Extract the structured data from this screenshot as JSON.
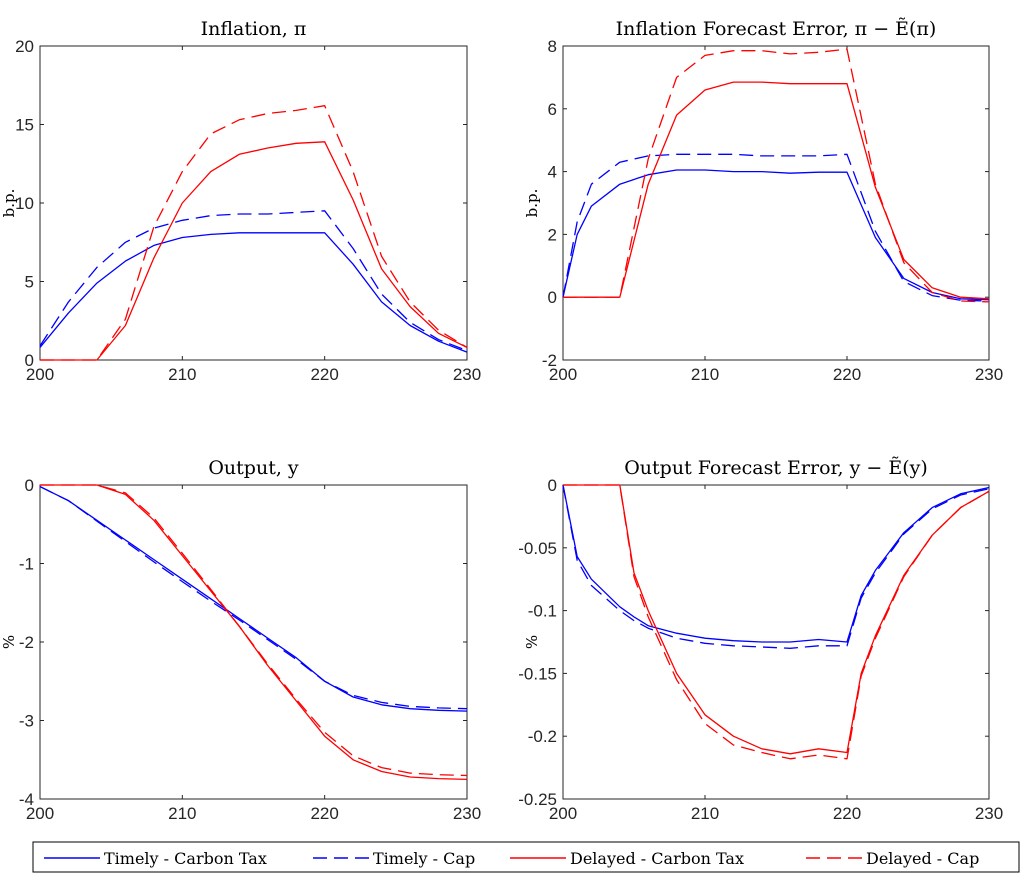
{
  "legend": [
    {
      "label": "Timely - Carbon Tax",
      "color": "#0000ff",
      "dash": "solid"
    },
    {
      "label": "Timely - Cap",
      "color": "#0000ff",
      "dash": "dashed"
    },
    {
      "label": "Delayed - Carbon Tax",
      "color": "#ff0000",
      "dash": "solid"
    },
    {
      "label": "Delayed - Cap",
      "color": "#ff0000",
      "dash": "dashed"
    }
  ],
  "chart_data": [
    {
      "id": "inflation",
      "type": "line",
      "title": "Inflation, π",
      "ylabel": "b.p.",
      "xlabel": "",
      "xlim": [
        200,
        230
      ],
      "ylim": [
        0,
        20
      ],
      "xticks": [
        200,
        210,
        220,
        230
      ],
      "yticks": [
        0,
        5,
        10,
        15,
        20
      ],
      "x": [
        200,
        202,
        204,
        206,
        208,
        210,
        212,
        214,
        216,
        218,
        220,
        222,
        224,
        226,
        228,
        230
      ],
      "series": [
        {
          "name": "Timely - Carbon Tax",
          "values": [
            0.8,
            3.0,
            4.9,
            6.3,
            7.3,
            7.8,
            8.0,
            8.1,
            8.1,
            8.1,
            8.1,
            6.1,
            3.7,
            2.2,
            1.2,
            0.5
          ]
        },
        {
          "name": "Timely - Cap",
          "values": [
            0.9,
            3.7,
            5.9,
            7.5,
            8.4,
            8.9,
            9.2,
            9.3,
            9.3,
            9.4,
            9.5,
            7.1,
            4.2,
            2.4,
            1.3,
            0.6
          ]
        },
        {
          "name": "Delayed - Carbon Tax",
          "values": [
            0,
            0,
            0,
            2.2,
            6.5,
            10.0,
            12.0,
            13.1,
            13.5,
            13.8,
            13.9,
            10.2,
            5.8,
            3.4,
            1.7,
            0.8
          ]
        },
        {
          "name": "Delayed - Cap",
          "values": [
            0,
            0,
            0,
            2.6,
            8.5,
            12.0,
            14.4,
            15.3,
            15.7,
            15.9,
            16.2,
            12.0,
            6.6,
            3.7,
            1.9,
            0.8
          ]
        }
      ]
    },
    {
      "id": "inflation-forecast-error",
      "type": "line",
      "title": "Inflation Forecast Error, π − Ẽ(π)",
      "ylabel": "b.p.",
      "xlabel": "",
      "xlim": [
        200,
        230
      ],
      "ylim": [
        -2,
        8
      ],
      "xticks": [
        200,
        210,
        220,
        230
      ],
      "yticks": [
        -2,
        0,
        2,
        4,
        6,
        8
      ],
      "x": [
        200,
        201,
        202,
        204,
        206,
        208,
        210,
        212,
        214,
        216,
        218,
        220,
        222,
        224,
        226,
        228,
        230
      ],
      "series": [
        {
          "name": "Timely - Carbon Tax",
          "values": [
            0,
            2.0,
            2.9,
            3.6,
            3.9,
            4.05,
            4.05,
            4.0,
            4.0,
            3.95,
            3.98,
            3.98,
            1.9,
            0.6,
            0.15,
            -0.05,
            -0.08
          ]
        },
        {
          "name": "Timely - Cap",
          "values": [
            0,
            2.4,
            3.6,
            4.3,
            4.5,
            4.55,
            4.55,
            4.55,
            4.5,
            4.5,
            4.5,
            4.55,
            2.1,
            0.5,
            0.05,
            -0.1,
            -0.12
          ]
        },
        {
          "name": "Delayed - Carbon Tax",
          "values": [
            0,
            0,
            0,
            0,
            3.6,
            5.8,
            6.6,
            6.85,
            6.85,
            6.8,
            6.8,
            6.8,
            3.5,
            1.2,
            0.3,
            0,
            -0.05
          ]
        },
        {
          "name": "Delayed - Cap",
          "values": [
            0,
            0,
            0,
            0,
            4.4,
            7.0,
            7.7,
            7.85,
            7.85,
            7.75,
            7.8,
            7.9,
            3.6,
            1.1,
            0.15,
            -0.12,
            -0.15
          ]
        }
      ]
    },
    {
      "id": "output",
      "type": "line",
      "title": "Output, y",
      "ylabel": "%",
      "xlabel": "",
      "xlim": [
        200,
        230
      ],
      "ylim": [
        -4,
        0
      ],
      "xticks": [
        200,
        210,
        220,
        230
      ],
      "yticks": [
        -4,
        -3,
        -2,
        -1,
        0
      ],
      "x": [
        200,
        202,
        204,
        206,
        208,
        210,
        212,
        214,
        216,
        218,
        220,
        222,
        224,
        226,
        228,
        230
      ],
      "series": [
        {
          "name": "Timely - Carbon Tax",
          "values": [
            -0.02,
            -0.2,
            -0.45,
            -0.7,
            -0.95,
            -1.2,
            -1.45,
            -1.7,
            -1.95,
            -2.2,
            -2.5,
            -2.7,
            -2.8,
            -2.85,
            -2.87,
            -2.88
          ]
        },
        {
          "name": "Timely - Cap",
          "values": [
            -0.02,
            -0.2,
            -0.46,
            -0.72,
            -0.98,
            -1.23,
            -1.48,
            -1.72,
            -1.97,
            -2.22,
            -2.5,
            -2.68,
            -2.77,
            -2.82,
            -2.84,
            -2.85
          ]
        },
        {
          "name": "Delayed - Carbon Tax",
          "values": [
            0,
            0,
            0,
            -0.12,
            -0.45,
            -0.9,
            -1.35,
            -1.8,
            -2.3,
            -2.75,
            -3.2,
            -3.5,
            -3.65,
            -3.72,
            -3.74,
            -3.75
          ]
        },
        {
          "name": "Delayed - Cap",
          "values": [
            0,
            0,
            0,
            -0.1,
            -0.42,
            -0.87,
            -1.33,
            -1.8,
            -2.28,
            -2.73,
            -3.15,
            -3.45,
            -3.6,
            -3.67,
            -3.69,
            -3.7
          ]
        }
      ]
    },
    {
      "id": "output-forecast-error",
      "type": "line",
      "title": "Output Forecast Error, y − Ẽ(y)",
      "ylabel": "%",
      "xlabel": "",
      "xlim": [
        200,
        230
      ],
      "ylim": [
        -0.25,
        0
      ],
      "xticks": [
        200,
        210,
        220,
        230
      ],
      "yticks": [
        -0.25,
        -0.2,
        -0.15,
        -0.1,
        -0.05,
        0
      ],
      "x": [
        200,
        201,
        202,
        204,
        205,
        206,
        208,
        210,
        212,
        214,
        216,
        218,
        220,
        221,
        222,
        224,
        226,
        228,
        230
      ],
      "series": [
        {
          "name": "Timely - Carbon Tax",
          "values": [
            0,
            -0.057,
            -0.075,
            -0.097,
            -0.105,
            -0.112,
            -0.118,
            -0.122,
            -0.124,
            -0.125,
            -0.125,
            -0.123,
            -0.125,
            -0.088,
            -0.068,
            -0.038,
            -0.018,
            -0.007,
            -0.002
          ]
        },
        {
          "name": "Timely - Cap",
          "values": [
            0,
            -0.06,
            -0.08,
            -0.1,
            -0.108,
            -0.114,
            -0.122,
            -0.126,
            -0.128,
            -0.129,
            -0.13,
            -0.128,
            -0.128,
            -0.09,
            -0.07,
            -0.039,
            -0.019,
            -0.008,
            -0.003
          ]
        },
        {
          "name": "Delayed - Carbon Tax",
          "values": [
            0,
            0,
            0,
            0,
            -0.07,
            -0.1,
            -0.15,
            -0.183,
            -0.2,
            -0.21,
            -0.214,
            -0.21,
            -0.213,
            -0.15,
            -0.12,
            -0.072,
            -0.04,
            -0.018,
            -0.005
          ]
        },
        {
          "name": "Delayed - Cap",
          "values": [
            0,
            0,
            0,
            0,
            -0.073,
            -0.105,
            -0.155,
            -0.19,
            -0.207,
            -0.213,
            -0.218,
            -0.215,
            -0.218,
            -0.152,
            -0.122,
            -0.073,
            -0.04,
            -0.018,
            -0.005
          ]
        }
      ]
    }
  ]
}
